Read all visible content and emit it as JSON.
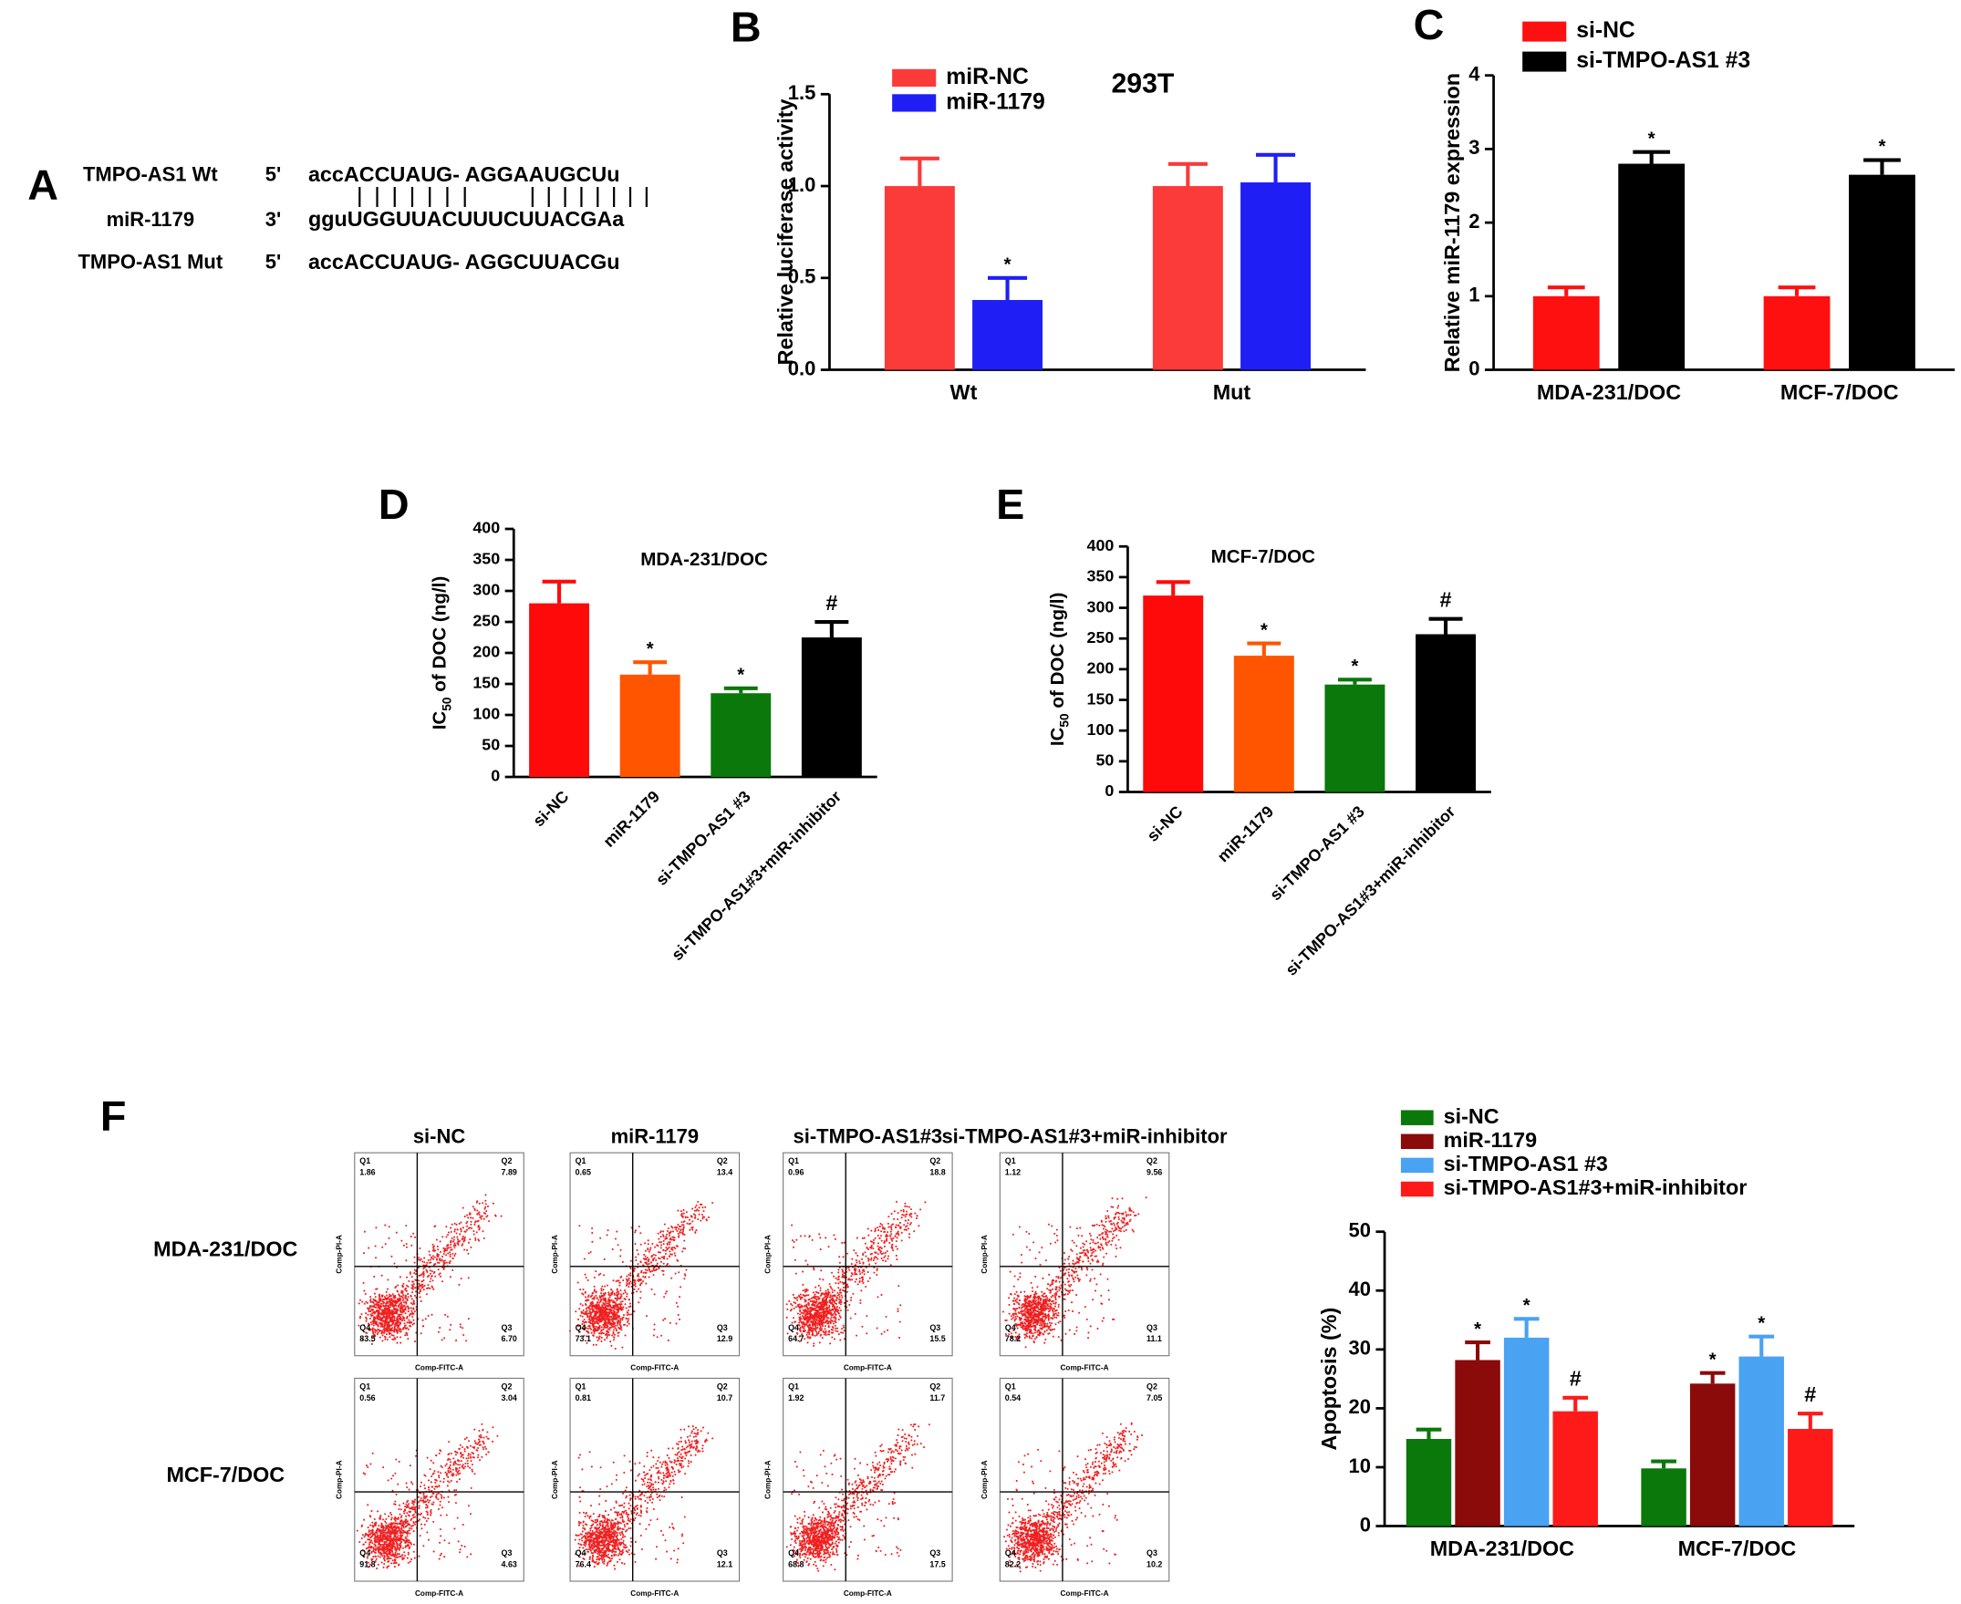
{
  "panel_a": {
    "label": "A",
    "rows": [
      {
        "name": "TMPO-AS1 Wt",
        "end": "5'",
        "sequence": "accACCUAUG- AGGAAUGCUu"
      },
      {
        "name": "miR-1179",
        "end": "3'",
        "sequence": "gguUGGUUACUUUCUUACGAa"
      },
      {
        "name": "TMPO-AS1 Mut",
        "end": "5'",
        "sequence": "accACCUAUG- AGGCUUACGu"
      }
    ]
  },
  "chart_data": [
    {
      "type": "bar",
      "panel": "B",
      "title": "293T",
      "y_label": "Relative luciferase activity",
      "categories": [
        "Wt",
        "Mut"
      ],
      "series": [
        {
          "name": "miR-NC",
          "color": "#fb3a3a",
          "values": [
            1.0,
            1.0
          ],
          "errors": [
            0.15,
            0.12
          ],
          "annotations": [
            null,
            null
          ]
        },
        {
          "name": "miR-1179",
          "color": "#1f1ff5",
          "values": [
            0.38,
            1.02
          ],
          "errors": [
            0.12,
            0.15
          ],
          "annotations": [
            "*",
            null
          ]
        }
      ],
      "ylim": [
        0,
        1.5
      ],
      "yticks": [
        {
          "value": 0,
          "label": "0.0"
        },
        {
          "value": 0.5,
          "label": "0.5"
        },
        {
          "value": 1,
          "label": "1.0"
        },
        {
          "value": 1.5,
          "label": "1.5"
        }
      ]
    },
    {
      "type": "bar",
      "panel": "C",
      "y_label": "Relative miR-1179 expression",
      "categories": [
        "MDA-231/DOC",
        "MCF-7/DOC"
      ],
      "series": [
        {
          "name": "si-NC",
          "color": "#ff1010",
          "values": [
            1.0,
            1.0
          ],
          "errors": [
            0.12,
            0.12
          ],
          "annotations": [
            null,
            null
          ]
        },
        {
          "name": "si-TMPO-AS1 #3",
          "color": "#000000",
          "values": [
            2.8,
            2.65
          ],
          "errors": [
            0.16,
            0.2
          ],
          "annotations": [
            "*",
            "*"
          ]
        }
      ],
      "ylim": [
        0,
        4
      ],
      "yticks": [
        0,
        1,
        2,
        3,
        4
      ]
    },
    {
      "type": "bar",
      "panel": "D",
      "title": "MDA-231/DOC",
      "y_label": {
        "text": "IC",
        "subscript": "50",
        "rest": " of DOC (ng/l)"
      },
      "categories": [
        "si-NC",
        "miR-1179",
        "si-TMPO-AS1 #3",
        "si-TMPO-AS1#3+miR-inhibitor"
      ],
      "values": [
        280,
        165,
        135,
        225
      ],
      "errors": [
        35,
        20,
        8,
        25
      ],
      "annotations": [
        null,
        "*",
        "*",
        "#"
      ],
      "colors": [
        "#ff0a0a",
        "#ff5500",
        "#0a780a",
        "#000000"
      ],
      "ylim": [
        0,
        400
      ],
      "yticks": [
        0,
        50,
        100,
        150,
        200,
        250,
        300,
        350,
        400
      ]
    },
    {
      "type": "bar",
      "panel": "E",
      "title": "MCF-7/DOC",
      "y_label": {
        "text": "IC",
        "subscript": "50",
        "rest": " of DOC (ng/l)"
      },
      "categories": [
        "si-NC",
        "miR-1179",
        "si-TMPO-AS1 #3",
        "si-TMPO-AS1#3+miR-inhibitor"
      ],
      "values": [
        320,
        222,
        175,
        257
      ],
      "errors": [
        22,
        20,
        8,
        25
      ],
      "annotations": [
        null,
        "*",
        "*",
        "#"
      ],
      "colors": [
        "#ff0a0a",
        "#ff5500",
        "#0a780a",
        "#000000"
      ],
      "ylim": [
        0,
        400
      ],
      "yticks": [
        0,
        50,
        100,
        150,
        200,
        250,
        300,
        350,
        400
      ]
    },
    {
      "type": "bar",
      "panel": "F",
      "y_label": "Apoptosis (%)",
      "categories": [
        "MDA-231/DOC",
        "MCF-7/DOC"
      ],
      "series": [
        {
          "name": "si-NC",
          "color": "#0a780a",
          "values": [
            14.8,
            9.8
          ],
          "errors": [
            1.6,
            1.2
          ],
          "annotations": [
            null,
            null
          ]
        },
        {
          "name": "miR-1179",
          "color": "#8b0a0a",
          "values": [
            28.2,
            24.2
          ],
          "errors": [
            3.0,
            1.8
          ],
          "annotations": [
            "*",
            "*"
          ]
        },
        {
          "name": "si-TMPO-AS1 #3",
          "color": "#4aa2f2",
          "values": [
            32.0,
            28.8
          ],
          "errors": [
            3.2,
            3.4
          ],
          "annotations": [
            "*",
            "*"
          ]
        },
        {
          "name": "si-TMPO-AS1#3+miR-inhibitor",
          "color": "#ff1a1a",
          "values": [
            19.5,
            16.5
          ],
          "errors": [
            2.3,
            2.6
          ],
          "annotations": [
            "#",
            "#"
          ]
        }
      ],
      "ylim": [
        0,
        50
      ],
      "yticks": [
        0,
        10,
        20,
        30,
        40,
        50
      ]
    }
  ],
  "flow": {
    "columns": [
      "si-NC",
      "miR-1179",
      "si-TMPO-AS1#3",
      "si-TMPO-AS1#3+miR-inhibitor"
    ],
    "quadrant_names": [
      "Q1",
      "Q2",
      "Q3",
      "Q4"
    ],
    "x_label": "Comp-FITC-A",
    "y_label": "Comp-PI-A",
    "rows": [
      {
        "name": "MDA-231/DOC",
        "plots": [
          [
            "1.86",
            "7.89",
            "6.70",
            "83.5"
          ],
          [
            "0.65",
            "13.4",
            "12.9",
            "73.1"
          ],
          [
            "0.96",
            "18.8",
            "15.5",
            "64.7"
          ],
          [
            "1.12",
            "9.56",
            "11.1",
            "78.2"
          ]
        ]
      },
      {
        "name": "MCF-7/DOC",
        "plots": [
          [
            "0.56",
            "3.04",
            "4.63",
            "91.8"
          ],
          [
            "0.81",
            "10.7",
            "12.1",
            "76.4"
          ],
          [
            "1.92",
            "11.7",
            "17.5",
            "68.8"
          ],
          [
            "0.54",
            "7.05",
            "10.2",
            "82.2"
          ]
        ]
      }
    ]
  }
}
